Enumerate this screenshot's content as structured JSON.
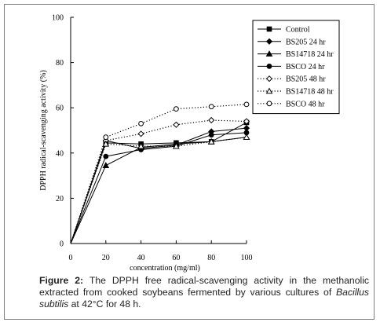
{
  "chart_data": {
    "type": "line",
    "title": "",
    "xlabel": "concentration (mg/ml)",
    "ylabel": "DPPH radical-scavenging activity (%)",
    "xlim": [
      0,
      100
    ],
    "ylim": [
      0,
      100
    ],
    "x_ticks": [
      "0",
      "20",
      "40",
      "60",
      "80",
      "100"
    ],
    "y_ticks": [
      "0",
      "20",
      "40",
      "60",
      "80",
      "100"
    ],
    "grid": false,
    "legend_position": "top-right",
    "x": [
      0,
      20,
      40,
      60,
      80,
      100
    ],
    "series": [
      {
        "name": "Control",
        "marker": "square-filled",
        "dash": "solid",
        "values": [
          0,
          44.5,
          44,
          44.5,
          45,
          53.5
        ]
      },
      {
        "name": "BS205 24 hr",
        "marker": "diamond-filled",
        "dash": "solid",
        "values": [
          0,
          45.5,
          42,
          43.5,
          49.5,
          51
        ]
      },
      {
        "name": "BS14718 24 hr",
        "marker": "triangle-filled",
        "dash": "solid",
        "values": [
          0,
          34.5,
          42.5,
          44,
          45,
          47
        ]
      },
      {
        "name": "BSCO 24 hr",
        "marker": "circle-filled",
        "dash": "solid",
        "values": [
          0,
          38.5,
          41.5,
          43,
          48,
          49
        ]
      },
      {
        "name": "BS205 48 hr",
        "marker": "diamond-open",
        "dash": "dotted",
        "values": [
          0,
          45.5,
          48.5,
          52.5,
          54.5,
          54
        ]
      },
      {
        "name": "BS14718 48 hr",
        "marker": "triangle-open",
        "dash": "dotted",
        "values": [
          0,
          44,
          43,
          43,
          45,
          47
        ]
      },
      {
        "name": "BSCO 48 hr",
        "marker": "circle-open",
        "dash": "dotted",
        "values": [
          0,
          47,
          53,
          59.5,
          60.5,
          61.5
        ]
      }
    ]
  },
  "caption": {
    "lead": "Figure 2:",
    "text": " The DPPH free radical-scavenging activity in the methanolic extracted from cooked soybeans fermented by various cultures of ",
    "species": "Bacillus subtilis",
    "tail": " at 42°C for 48 h."
  }
}
